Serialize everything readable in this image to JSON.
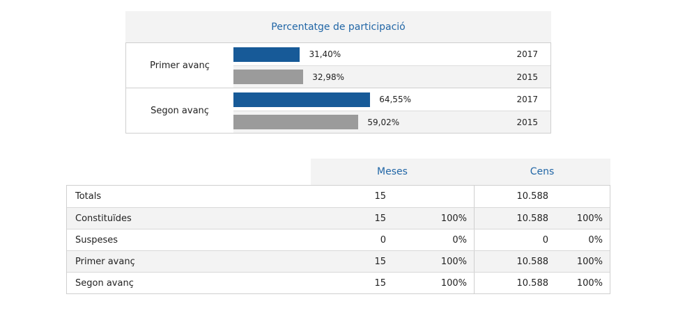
{
  "participation": {
    "title": "Percentatge de participació",
    "colors": {
      "current": "#175a98",
      "previous": "#9b9b9b",
      "title": "#2166a6"
    },
    "groups": [
      {
        "label": "Primer avanç",
        "bars": [
          {
            "year": "2017",
            "value": 31.4,
            "text": "31,40%",
            "series": "current"
          },
          {
            "year": "2015",
            "value": 32.98,
            "text": "32,98%",
            "series": "previous"
          }
        ]
      },
      {
        "label": "Segon avanç",
        "bars": [
          {
            "year": "2017",
            "value": 64.55,
            "text": "64,55%",
            "series": "current"
          },
          {
            "year": "2015",
            "value": 59.02,
            "text": "59,02%",
            "series": "previous"
          }
        ]
      }
    ]
  },
  "stats": {
    "headers": {
      "meses": "Meses",
      "cens": "Cens"
    },
    "rows": [
      {
        "label": "Totals",
        "meses": "15",
        "meses_pct": "",
        "cens": "10.588",
        "cens_pct": ""
      },
      {
        "label": "Constituïdes",
        "meses": "15",
        "meses_pct": "100%",
        "cens": "10.588",
        "cens_pct": "100%"
      },
      {
        "label": "Suspeses",
        "meses": "0",
        "meses_pct": "0%",
        "cens": "0",
        "cens_pct": "0%"
      },
      {
        "label": "Primer avanç",
        "meses": "15",
        "meses_pct": "100%",
        "cens": "10.588",
        "cens_pct": "100%"
      },
      {
        "label": "Segon avanç",
        "meses": "15",
        "meses_pct": "100%",
        "cens": "10.588",
        "cens_pct": "100%"
      }
    ]
  }
}
